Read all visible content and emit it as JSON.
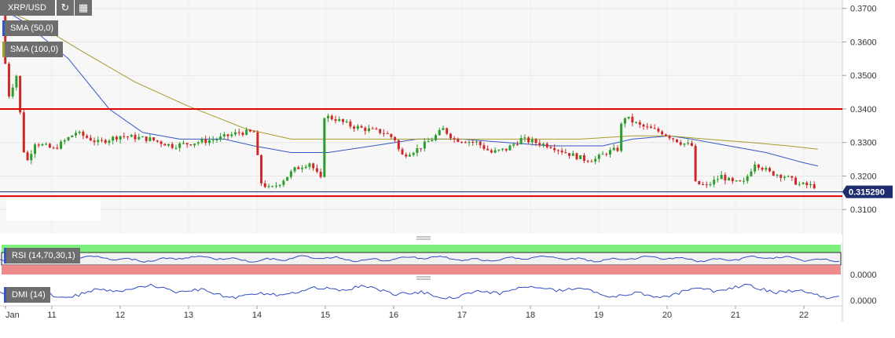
{
  "symbol": "XRP/USD",
  "icons": [
    "refresh-icon",
    "calendar-icon"
  ],
  "indicators": {
    "sma50": {
      "label": "SMA (50,0)",
      "color": "#3456c4"
    },
    "sma100": {
      "label": "SMA (100,0)",
      "color": "#a89a2c"
    },
    "rsi": {
      "label": "RSI (14,70,30,1)",
      "overbought_color": "#7ef07e",
      "oversold_color": "#f08a8a",
      "value_label": "0.0000"
    },
    "dmi": {
      "label": "DMI (14)",
      "value_label": "0.0000"
    }
  },
  "chart_data": {
    "type": "candlestick",
    "x_tick_labels": [
      "Jan",
      "11",
      "12",
      "13",
      "14",
      "15",
      "16",
      "17",
      "18",
      "19",
      "20",
      "21",
      "22"
    ],
    "y_tick_labels": [
      "0.3700",
      "0.3600",
      "0.3500",
      "0.3400",
      "0.3300",
      "0.3200",
      "0.3100"
    ],
    "y_ticks": [
      0.37,
      0.36,
      0.35,
      0.34,
      0.33,
      0.32,
      0.31
    ],
    "ylim": [
      0.3028,
      0.3725
    ],
    "last_price": 0.31529,
    "last_price_label": "0.315290",
    "resistance": 0.34,
    "support": 0.314,
    "colors": {
      "up": "#2a9d2a",
      "down": "#d02828",
      "level": "#e00000",
      "price_line": "#1f2d6e"
    },
    "price_path": [
      [
        0.0,
        0.371
      ],
      [
        0.08,
        0.343
      ],
      [
        0.2,
        0.35
      ],
      [
        0.32,
        0.323
      ],
      [
        0.45,
        0.33
      ],
      [
        0.7,
        0.328
      ],
      [
        1.0,
        0.333
      ],
      [
        1.3,
        0.33
      ],
      [
        1.6,
        0.332
      ],
      [
        2.0,
        0.331
      ],
      [
        2.3,
        0.329
      ],
      [
        2.6,
        0.33
      ],
      [
        2.9,
        0.331
      ],
      [
        3.2,
        0.333
      ],
      [
        3.4,
        0.333
      ],
      [
        3.5,
        0.318
      ],
      [
        3.62,
        0.316
      ],
      [
        3.75,
        0.318
      ],
      [
        3.95,
        0.322
      ],
      [
        4.15,
        0.324
      ],
      [
        4.3,
        0.319
      ],
      [
        4.33,
        0.338
      ],
      [
        4.5,
        0.337
      ],
      [
        4.7,
        0.335
      ],
      [
        4.9,
        0.334
      ],
      [
        5.15,
        0.333
      ],
      [
        5.3,
        0.331
      ],
      [
        5.38,
        0.326
      ],
      [
        5.6,
        0.328
      ],
      [
        5.8,
        0.331
      ],
      [
        5.95,
        0.334
      ],
      [
        6.1,
        0.331
      ],
      [
        6.4,
        0.33
      ],
      [
        6.6,
        0.327
      ],
      [
        6.8,
        0.328
      ],
      [
        7.0,
        0.331
      ],
      [
        7.2,
        0.33
      ],
      [
        7.4,
        0.329
      ],
      [
        7.6,
        0.327
      ],
      [
        7.85,
        0.325
      ],
      [
        8.0,
        0.325
      ],
      [
        8.15,
        0.327
      ],
      [
        8.3,
        0.328
      ],
      [
        8.37,
        0.338
      ],
      [
        8.6,
        0.335
      ],
      [
        8.9,
        0.333
      ],
      [
        9.15,
        0.33
      ],
      [
        9.3,
        0.329
      ],
      [
        9.32,
        0.318
      ],
      [
        9.5,
        0.317
      ],
      [
        9.7,
        0.32
      ],
      [
        9.85,
        0.318
      ],
      [
        10.0,
        0.318
      ],
      [
        10.15,
        0.324
      ],
      [
        10.35,
        0.321
      ],
      [
        10.55,
        0.32
      ],
      [
        10.75,
        0.3175
      ],
      [
        10.95,
        0.317
      ],
      [
        11.0,
        0.316
      ]
    ],
    "series": [
      {
        "name": "SMA (50,0)",
        "points": [
          [
            0.0,
            0.37
          ],
          [
            0.3,
            0.366
          ],
          [
            0.9,
            0.355
          ],
          [
            1.45,
            0.34
          ],
          [
            1.9,
            0.333
          ],
          [
            2.4,
            0.331
          ],
          [
            3.0,
            0.331
          ],
          [
            3.4,
            0.329
          ],
          [
            3.9,
            0.327
          ],
          [
            4.4,
            0.327
          ],
          [
            5.0,
            0.329
          ],
          [
            5.6,
            0.331
          ],
          [
            6.2,
            0.331
          ],
          [
            6.8,
            0.33
          ],
          [
            7.4,
            0.329
          ],
          [
            8.1,
            0.329
          ],
          [
            8.5,
            0.331
          ],
          [
            9.0,
            0.332
          ],
          [
            9.3,
            0.331
          ],
          [
            9.8,
            0.329
          ],
          [
            10.3,
            0.327
          ],
          [
            10.8,
            0.324
          ],
          [
            11.0,
            0.323
          ]
        ]
      },
      {
        "name": "SMA (100,0)",
        "points": [
          [
            0.0,
            0.37
          ],
          [
            0.5,
            0.365
          ],
          [
            1.1,
            0.357
          ],
          [
            1.8,
            0.348
          ],
          [
            2.5,
            0.341
          ],
          [
            3.3,
            0.334
          ],
          [
            3.9,
            0.331
          ],
          [
            4.6,
            0.331
          ],
          [
            5.4,
            0.331
          ],
          [
            6.2,
            0.331
          ],
          [
            7.0,
            0.331
          ],
          [
            7.8,
            0.331
          ],
          [
            8.5,
            0.332
          ],
          [
            9.0,
            0.332
          ],
          [
            9.5,
            0.331
          ],
          [
            10.1,
            0.33
          ],
          [
            10.6,
            0.329
          ],
          [
            11.0,
            0.328
          ]
        ]
      }
    ]
  }
}
